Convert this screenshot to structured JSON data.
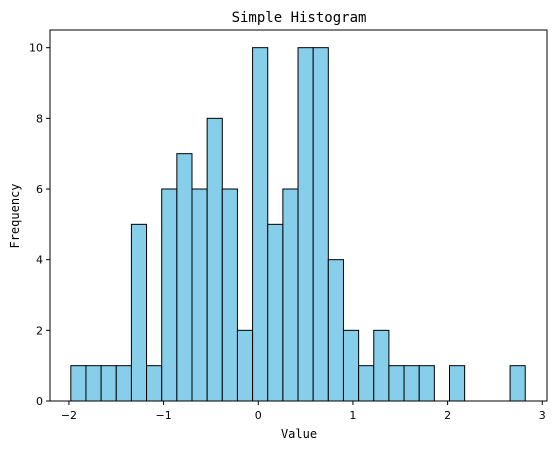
{
  "chart_data": {
    "type": "bar",
    "title": "Simple Histogram",
    "xlabel": "Value",
    "ylabel": "Frequency",
    "xlim": [
      -2.2,
      3.05
    ],
    "ylim": [
      0,
      10.5
    ],
    "xticks": [
      -2,
      -1,
      0,
      1,
      2,
      3
    ],
    "yticks": [
      0,
      2,
      4,
      6,
      8,
      10
    ],
    "bin_edges": [
      -1.98,
      -1.82,
      -1.66,
      -1.5,
      -1.34,
      -1.18,
      -1.02,
      -0.86,
      -0.7,
      -0.54,
      -0.38,
      -0.22,
      -0.06,
      0.1,
      0.26,
      0.42,
      0.58,
      0.74,
      0.9,
      1.06,
      1.22,
      1.38,
      1.54,
      1.7,
      1.86,
      2.02,
      2.18,
      2.34,
      2.5,
      2.66,
      2.82
    ],
    "counts": [
      1,
      1,
      1,
      1,
      5,
      1,
      6,
      7,
      6,
      8,
      6,
      2,
      10,
      5,
      6,
      10,
      10,
      4,
      2,
      1,
      2,
      1,
      1,
      1,
      0,
      1,
      0,
      0,
      0,
      1
    ],
    "bar_color": "#87ceeb",
    "edge_color": "#000000",
    "grid": false
  }
}
